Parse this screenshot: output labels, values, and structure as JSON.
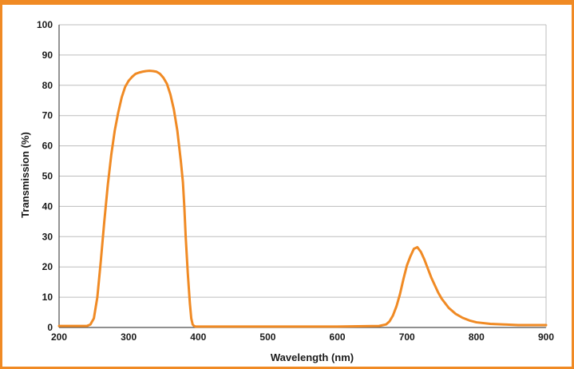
{
  "chart_data": {
    "type": "line",
    "title": "",
    "xlabel": "Wavelength (nm)",
    "ylabel": "Transmission (%)",
    "xlim": [
      200,
      900
    ],
    "ylim": [
      0,
      100
    ],
    "x_ticks": [
      200,
      300,
      400,
      500,
      600,
      700,
      800,
      900
    ],
    "y_ticks": [
      0,
      10,
      20,
      30,
      40,
      50,
      60,
      70,
      80,
      90,
      100
    ],
    "grid": "horizontal",
    "legend": "none",
    "series": [
      {
        "color": "#f08a24",
        "x": [
          200,
          240,
          245,
          250,
          255,
          260,
          265,
          270,
          275,
          280,
          285,
          290,
          295,
          300,
          305,
          310,
          315,
          320,
          325,
          330,
          335,
          340,
          345,
          350,
          355,
          360,
          365,
          370,
          375,
          378,
          380,
          382,
          385,
          388,
          390,
          392,
          394,
          396,
          400,
          450,
          500,
          550,
          600,
          660,
          670,
          675,
          680,
          685,
          690,
          695,
          700,
          705,
          710,
          715,
          720,
          725,
          730,
          735,
          740,
          745,
          750,
          760,
          770,
          780,
          790,
          800,
          820,
          840,
          860,
          880,
          900
        ],
        "y": [
          0.5,
          0.5,
          1,
          3,
          10,
          22,
          35,
          47,
          57,
          65,
          71,
          76,
          79.5,
          81.5,
          82.8,
          83.8,
          84.2,
          84.5,
          84.7,
          84.8,
          84.7,
          84.5,
          83.8,
          82.5,
          80.5,
          77,
          72,
          65,
          55,
          48,
          40,
          30,
          18,
          8,
          3,
          1,
          0.5,
          0.3,
          0.3,
          0.3,
          0.3,
          0.3,
          0.3,
          0.5,
          1,
          2,
          4,
          7,
          11,
          16,
          20.5,
          23.5,
          26,
          26.5,
          25,
          22.5,
          19.5,
          16.5,
          14,
          11.5,
          9.5,
          6.5,
          4.5,
          3.2,
          2.3,
          1.7,
          1.2,
          1,
          0.8,
          0.8,
          0.8
        ]
      }
    ]
  }
}
